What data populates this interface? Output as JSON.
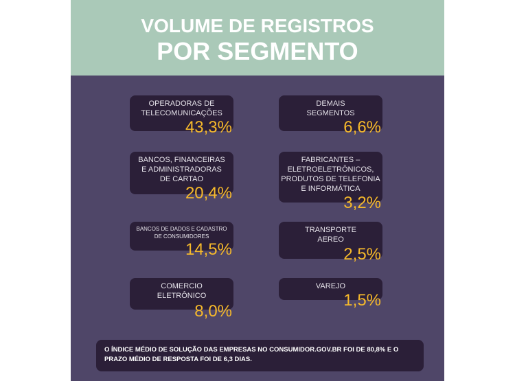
{
  "header": {
    "title_lines": [
      "VOLUME DE REGISTROS",
      "POR SEGMENTO"
    ]
  },
  "segments": [
    {
      "lines": [
        "OPERADORAS DE",
        "TELECOMUNICAÇÕES"
      ],
      "value": "43,3%"
    },
    {
      "lines": [
        "DEMAIS",
        "SEGMENTOS"
      ],
      "value": "6,6%"
    },
    {
      "lines": [
        "BANCOS, FINANCEIRAS",
        "E ADMINISTRADORAS",
        "DE CARTAO"
      ],
      "value": "20,4%"
    },
    {
      "lines": [
        "FABRICANTES –",
        "ELETROELETRÔNICOS,",
        "PRODUTOS DE TELEFONIA",
        "E INFORMÁTICA"
      ],
      "value": "3,2%"
    },
    {
      "lines": [
        "BANCOS DE DADOS E CADASTRO",
        "DE CONSUMIDORES"
      ],
      "value": "14,5%"
    },
    {
      "lines": [
        "TRANSPORTE",
        "AEREO"
      ],
      "value": "2,5%"
    },
    {
      "lines": [
        "COMERCIO",
        "ELETRÔNICO"
      ],
      "value": "8,0%"
    },
    {
      "lines": [
        "VAREJO"
      ],
      "value": "1,5%"
    }
  ],
  "footer": {
    "lines": [
      "O ÍNDICE MÉDIO DE SOLUÇÃO DAS EMPRESAS NO CONSUMIDOR.GOV.BR FOI DE 80,8% E O",
      "PRAZO MÉDIO DE RESPOSTA FOI DE 6,3 DIAS."
    ]
  }
}
